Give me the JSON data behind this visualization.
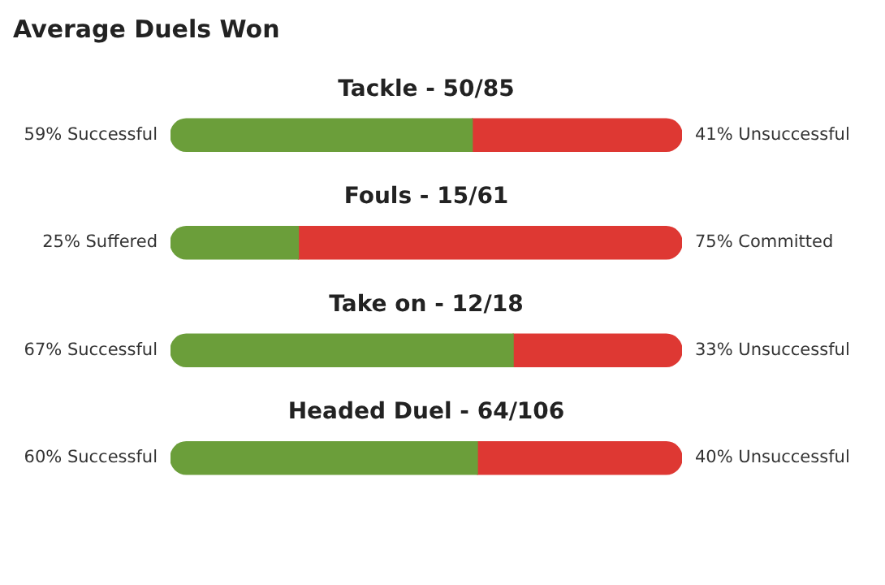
{
  "chart_data": {
    "type": "bar",
    "orientation": "horizontal",
    "stacked": true,
    "title": "Average Duels Won",
    "categories": [
      "Tackle - 50/85",
      "Fouls - 15/61",
      "Take on - 12/18",
      "Headed Duel - 64/106"
    ],
    "series": [
      {
        "color": "#6b9e3a",
        "values": [
          59,
          25,
          67,
          60
        ],
        "value_labels": [
          "59% Successful",
          "25% Suffered",
          "67% Successful",
          "60% Successful"
        ]
      },
      {
        "color": "#de3833",
        "values": [
          41,
          75,
          33,
          40
        ],
        "value_labels": [
          "41% Unsuccessful",
          "75% Committed",
          "33% Unsuccessful",
          "40% Unsuccessful"
        ]
      }
    ],
    "xlim": [
      0,
      100
    ],
    "tick_labels": "y",
    "legend": false
  }
}
